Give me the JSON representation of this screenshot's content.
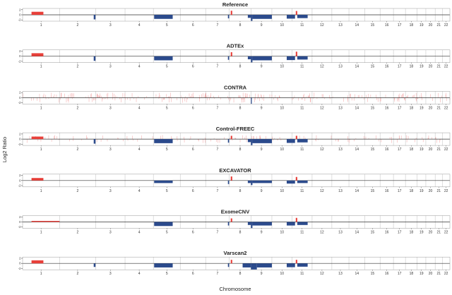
{
  "chart_data": {
    "type": "bar",
    "xlabel": "Chromosome",
    "ylabel": "Log2 Ratio",
    "yticks": [
      "2",
      "0",
      "-2"
    ],
    "ylim": [
      -2.5,
      2.5
    ],
    "chromosomes": [
      "1",
      "2",
      "3",
      "4",
      "5",
      "6",
      "7",
      "8",
      "9",
      "10",
      "11",
      "12",
      "13",
      "14",
      "15",
      "16",
      "17",
      "18",
      "19",
      "20",
      "21",
      "22"
    ],
    "chromosome_sizes_mb": [
      249,
      243,
      198,
      191,
      181,
      171,
      159,
      146,
      141,
      136,
      135,
      133,
      115,
      107,
      103,
      90,
      81,
      78,
      59,
      63,
      48,
      51
    ],
    "colors": {
      "gain": "#e8403a",
      "loss": "#2b4a8c",
      "noise": "#f2a0a0",
      "boundary": "#c8c8c8",
      "baseline": "#333333"
    },
    "panels": [
      {
        "title": "Reference",
        "segments": [
          {
            "chrom": "1",
            "start": 60,
            "end": 140,
            "value": 1.2
          },
          {
            "chrom": "2",
            "start": 230,
            "end": 242,
            "value": -1.8
          },
          {
            "chrom": "5",
            "start": 5,
            "end": 130,
            "value": -1.6
          },
          {
            "chrom": "7",
            "start": 150,
            "end": 158,
            "value": -1.4
          },
          {
            "chrom": "8",
            "start": 10,
            "end": 20,
            "value": 1.6
          },
          {
            "chrom": "8",
            "start": 125,
            "end": 146,
            "value": -1.2
          },
          {
            "chrom": "9",
            "start": 0,
            "end": 10,
            "value": -2.4
          },
          {
            "chrom": "9",
            "start": 10,
            "end": 141,
            "value": -1.6
          },
          {
            "chrom": "10",
            "start": 100,
            "end": 136,
            "value": -1.5
          },
          {
            "chrom": "11",
            "start": 0,
            "end": 20,
            "value": -1.5
          },
          {
            "chrom": "11",
            "start": 25,
            "end": 35,
            "value": 1.5
          },
          {
            "chrom": "11",
            "start": 35,
            "end": 105,
            "value": -1.3
          }
        ],
        "noise": false
      },
      {
        "title": "ADTEx",
        "segments": [
          {
            "chrom": "1",
            "start": 60,
            "end": 140,
            "value": 1.2
          },
          {
            "chrom": "2",
            "start": 230,
            "end": 242,
            "value": -1.8
          },
          {
            "chrom": "5",
            "start": 5,
            "end": 130,
            "value": -1.6
          },
          {
            "chrom": "7",
            "start": 150,
            "end": 158,
            "value": -1.4
          },
          {
            "chrom": "8",
            "start": 10,
            "end": 20,
            "value": 1.6
          },
          {
            "chrom": "8",
            "start": 125,
            "end": 146,
            "value": -1.2
          },
          {
            "chrom": "9",
            "start": 0,
            "end": 10,
            "value": -2.4
          },
          {
            "chrom": "9",
            "start": 10,
            "end": 141,
            "value": -1.6
          },
          {
            "chrom": "10",
            "start": 100,
            "end": 136,
            "value": -1.5
          },
          {
            "chrom": "11",
            "start": 0,
            "end": 20,
            "value": -1.5
          },
          {
            "chrom": "11",
            "start": 25,
            "end": 35,
            "value": 1.8
          },
          {
            "chrom": "11",
            "start": 35,
            "end": 105,
            "value": -1.3
          }
        ],
        "noise": false
      },
      {
        "title": "CONTRA",
        "segments": [
          {
            "chrom": "9",
            "start": 0,
            "end": 3,
            "value": -2.4
          }
        ],
        "noise": true
      },
      {
        "title": "Control-FREEC",
        "segments": [
          {
            "chrom": "1",
            "start": 60,
            "end": 140,
            "value": 1.0
          },
          {
            "chrom": "2",
            "start": 230,
            "end": 242,
            "value": -1.8
          },
          {
            "chrom": "5",
            "start": 5,
            "end": 130,
            "value": -1.6
          },
          {
            "chrom": "7",
            "start": 150,
            "end": 158,
            "value": -1.4
          },
          {
            "chrom": "8",
            "start": 10,
            "end": 20,
            "value": 1.3
          },
          {
            "chrom": "8",
            "start": 125,
            "end": 146,
            "value": -1.2
          },
          {
            "chrom": "9",
            "start": 0,
            "end": 10,
            "value": -2.4
          },
          {
            "chrom": "9",
            "start": 10,
            "end": 141,
            "value": -1.6
          },
          {
            "chrom": "10",
            "start": 100,
            "end": 136,
            "value": -1.5
          },
          {
            "chrom": "11",
            "start": 0,
            "end": 20,
            "value": -1.5
          },
          {
            "chrom": "11",
            "start": 25,
            "end": 35,
            "value": 1.3
          },
          {
            "chrom": "11",
            "start": 35,
            "end": 105,
            "value": -1.3
          }
        ],
        "noise": true
      },
      {
        "title": "EXCAVATOR",
        "segments": [
          {
            "chrom": "1",
            "start": 60,
            "end": 140,
            "value": 1.0
          },
          {
            "chrom": "5",
            "start": 5,
            "end": 130,
            "value": -1.0
          },
          {
            "chrom": "7",
            "start": 150,
            "end": 158,
            "value": -1.4
          },
          {
            "chrom": "8",
            "start": 10,
            "end": 20,
            "value": 1.6
          },
          {
            "chrom": "8",
            "start": 125,
            "end": 146,
            "value": -1.0
          },
          {
            "chrom": "9",
            "start": 0,
            "end": 10,
            "value": -1.8
          },
          {
            "chrom": "9",
            "start": 10,
            "end": 141,
            "value": -1.0
          },
          {
            "chrom": "10",
            "start": 100,
            "end": 136,
            "value": -1.2
          },
          {
            "chrom": "11",
            "start": 0,
            "end": 20,
            "value": -1.2
          },
          {
            "chrom": "11",
            "start": 25,
            "end": 35,
            "value": 1.4
          },
          {
            "chrom": "11",
            "start": 35,
            "end": 105,
            "value": -1.0
          }
        ],
        "noise": false
      },
      {
        "title": "ExomeCNV",
        "segments": [
          {
            "chrom": "1",
            "start": 60,
            "end": 249,
            "value": 0.4
          },
          {
            "chrom": "5",
            "start": 5,
            "end": 130,
            "value": -1.6
          },
          {
            "chrom": "7",
            "start": 150,
            "end": 158,
            "value": -1.4
          },
          {
            "chrom": "8",
            "start": 10,
            "end": 20,
            "value": 1.4
          },
          {
            "chrom": "8",
            "start": 125,
            "end": 146,
            "value": -1.2
          },
          {
            "chrom": "9",
            "start": 0,
            "end": 10,
            "value": -2.4
          },
          {
            "chrom": "9",
            "start": 10,
            "end": 141,
            "value": -1.4
          },
          {
            "chrom": "10",
            "start": 100,
            "end": 136,
            "value": -1.4
          },
          {
            "chrom": "11",
            "start": 0,
            "end": 20,
            "value": -1.4
          },
          {
            "chrom": "11",
            "start": 25,
            "end": 35,
            "value": 1.6
          },
          {
            "chrom": "11",
            "start": 35,
            "end": 105,
            "value": -1.2
          }
        ],
        "noise": false
      },
      {
        "title": "Varscan2",
        "segments": [
          {
            "chrom": "1",
            "start": 60,
            "end": 140,
            "value": 1.2
          },
          {
            "chrom": "2",
            "start": 230,
            "end": 242,
            "value": -1.4
          },
          {
            "chrom": "5",
            "start": 5,
            "end": 130,
            "value": -1.6
          },
          {
            "chrom": "7",
            "start": 150,
            "end": 158,
            "value": -1.4
          },
          {
            "chrom": "8",
            "start": 10,
            "end": 20,
            "value": 1.4
          },
          {
            "chrom": "8",
            "start": 90,
            "end": 146,
            "value": -1.6
          },
          {
            "chrom": "9",
            "start": 0,
            "end": 40,
            "value": -2.4
          },
          {
            "chrom": "9",
            "start": 40,
            "end": 141,
            "value": -1.6
          },
          {
            "chrom": "10",
            "start": 100,
            "end": 136,
            "value": -1.5
          },
          {
            "chrom": "11",
            "start": 0,
            "end": 20,
            "value": -1.5
          },
          {
            "chrom": "11",
            "start": 25,
            "end": 35,
            "value": 1.4
          },
          {
            "chrom": "11",
            "start": 35,
            "end": 105,
            "value": -1.3
          }
        ],
        "noise": false
      }
    ]
  }
}
